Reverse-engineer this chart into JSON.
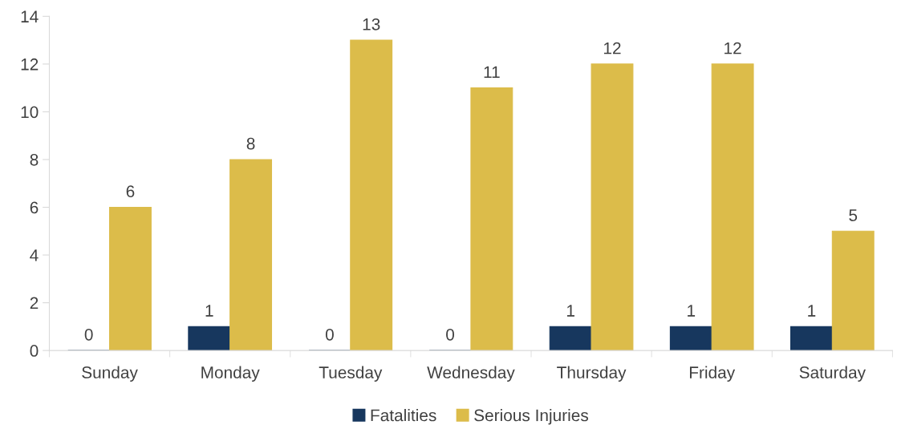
{
  "chart_data": {
    "type": "bar",
    "categories": [
      "Sunday",
      "Monday",
      "Tuesday",
      "Wednesday",
      "Thursday",
      "Friday",
      "Saturday"
    ],
    "series": [
      {
        "name": "Fatalities",
        "color": "#17375e",
        "values": [
          0,
          1,
          0,
          0,
          1,
          1,
          1
        ]
      },
      {
        "name": "Serious Injuries",
        "color": "#dcbc4a",
        "values": [
          6,
          8,
          13,
          11,
          12,
          12,
          5
        ]
      }
    ],
    "ylim": [
      0,
      14
    ],
    "yticks": [
      0,
      2,
      4,
      6,
      8,
      10,
      12,
      14
    ],
    "grid": false,
    "legend": "bottom",
    "data_labels": true
  }
}
